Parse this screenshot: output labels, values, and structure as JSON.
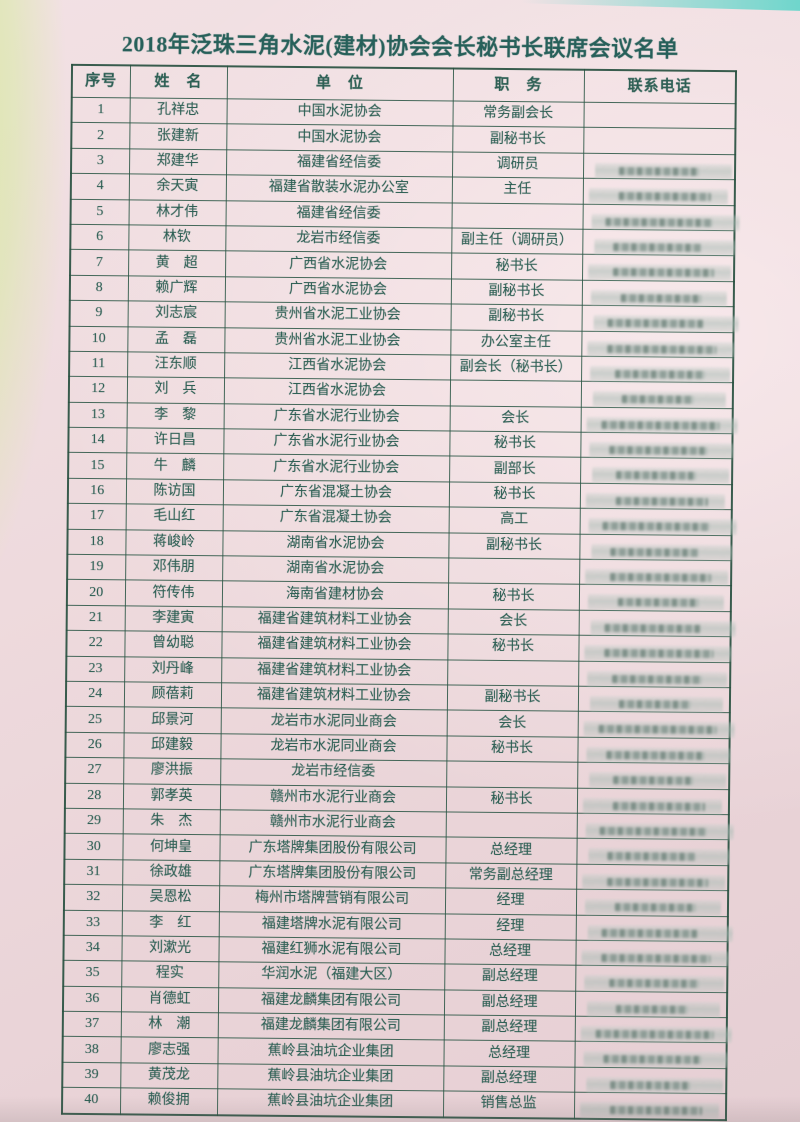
{
  "page": {
    "title": "2018年泛珠三角水泥(建材)协会会长秘书长联席会议名单"
  },
  "colors": {
    "ink_green": "#2d5f54",
    "paper_pink": "#eedadd",
    "background_teal": "#6fd6cc",
    "left_edge_green": "#d5e898",
    "redaction_gray": "#aebdb6"
  },
  "table": {
    "headers": [
      "序号",
      "姓　名",
      "单　位",
      "职　务",
      "联系电话"
    ],
    "rows": [
      {
        "no": "1",
        "name": "孔祥忠",
        "org": "中国水泥协会",
        "title": "常务副会长",
        "phone_redacted": false
      },
      {
        "no": "2",
        "name": "张建新",
        "org": "中国水泥协会",
        "title": "副秘书长",
        "phone_redacted": false
      },
      {
        "no": "3",
        "name": "郑建华",
        "org": "福建省经信委",
        "title": "调研员",
        "phone_redacted": true
      },
      {
        "no": "4",
        "name": "余天寅",
        "org": "福建省散装水泥办公室",
        "title": "主任",
        "phone_redacted": true
      },
      {
        "no": "5",
        "name": "林才伟",
        "org": "福建省经信委",
        "title": "",
        "phone_redacted": true
      },
      {
        "no": "6",
        "name": "林钦",
        "org": "龙岩市经信委",
        "title": "副主任（调研员）",
        "phone_redacted": true
      },
      {
        "no": "7",
        "name": "黄　超",
        "org": "广西省水泥协会",
        "title": "秘书长",
        "phone_redacted": true
      },
      {
        "no": "8",
        "name": "赖广辉",
        "org": "广西省水泥协会",
        "title": "副秘书长",
        "phone_redacted": true
      },
      {
        "no": "9",
        "name": "刘志宸",
        "org": "贵州省水泥工业协会",
        "title": "副秘书长",
        "phone_redacted": true
      },
      {
        "no": "10",
        "name": "孟　磊",
        "org": "贵州省水泥工业协会",
        "title": "办公室主任",
        "phone_redacted": true
      },
      {
        "no": "11",
        "name": "汪东顺",
        "org": "江西省水泥协会",
        "title": "副会长（秘书长）",
        "phone_redacted": true
      },
      {
        "no": "12",
        "name": "刘　兵",
        "org": "江西省水泥协会",
        "title": "",
        "phone_redacted": true
      },
      {
        "no": "13",
        "name": "李　黎",
        "org": "广东省水泥行业协会",
        "title": "会长",
        "phone_redacted": true
      },
      {
        "no": "14",
        "name": "许日昌",
        "org": "广东省水泥行业协会",
        "title": "秘书长",
        "phone_redacted": true
      },
      {
        "no": "15",
        "name": "牛　麟",
        "org": "广东省水泥行业协会",
        "title": "副部长",
        "phone_redacted": true
      },
      {
        "no": "16",
        "name": "陈访国",
        "org": "广东省混凝土协会",
        "title": "秘书长",
        "phone_redacted": true
      },
      {
        "no": "17",
        "name": "毛山红",
        "org": "广东省混凝土协会",
        "title": "高工",
        "phone_redacted": true
      },
      {
        "no": "18",
        "name": "蒋峻岭",
        "org": "湖南省水泥协会",
        "title": "副秘书长",
        "phone_redacted": true
      },
      {
        "no": "19",
        "name": "邓伟朋",
        "org": "湖南省水泥协会",
        "title": "",
        "phone_redacted": true
      },
      {
        "no": "20",
        "name": "符传伟",
        "org": "海南省建材协会",
        "title": "秘书长",
        "phone_redacted": true
      },
      {
        "no": "21",
        "name": "李建寅",
        "org": "福建省建筑材料工业协会",
        "title": "会长",
        "phone_redacted": true
      },
      {
        "no": "22",
        "name": "曾幼聪",
        "org": "福建省建筑材料工业协会",
        "title": "秘书长",
        "phone_redacted": true
      },
      {
        "no": "23",
        "name": "刘丹峰",
        "org": "福建省建筑材料工业协会",
        "title": "",
        "phone_redacted": true
      },
      {
        "no": "24",
        "name": "顾蓓莉",
        "org": "福建省建筑材料工业协会",
        "title": "副秘书长",
        "phone_redacted": true
      },
      {
        "no": "25",
        "name": "邱景河",
        "org": "龙岩市水泥同业商会",
        "title": "会长",
        "phone_redacted": true
      },
      {
        "no": "26",
        "name": "邱建毅",
        "org": "龙岩市水泥同业商会",
        "title": "秘书长",
        "phone_redacted": true
      },
      {
        "no": "27",
        "name": "廖洪振",
        "org": "龙岩市经信委",
        "title": "",
        "phone_redacted": true
      },
      {
        "no": "28",
        "name": "郭孝英",
        "org": "赣州市水泥行业商会",
        "title": "秘书长",
        "phone_redacted": true
      },
      {
        "no": "29",
        "name": "朱　杰",
        "org": "赣州市水泥行业商会",
        "title": "",
        "phone_redacted": true
      },
      {
        "no": "30",
        "name": "何坤皇",
        "org": "广东塔牌集团股份有限公司",
        "title": "总经理",
        "phone_redacted": true
      },
      {
        "no": "31",
        "name": "徐政雄",
        "org": "广东塔牌集团股份有限公司",
        "title": "常务副总经理",
        "phone_redacted": true
      },
      {
        "no": "32",
        "name": "吴恩松",
        "org": "梅州市塔牌营销有限公司",
        "title": "经理",
        "phone_redacted": true
      },
      {
        "no": "33",
        "name": "李　红",
        "org": "福建塔牌水泥有限公司",
        "title": "经理",
        "phone_redacted": true
      },
      {
        "no": "34",
        "name": "刘漱光",
        "org": "福建红狮水泥有限公司",
        "title": "总经理",
        "phone_redacted": true
      },
      {
        "no": "35",
        "name": "程实",
        "org": "华润水泥（福建大区）",
        "title": "副总经理",
        "phone_redacted": true
      },
      {
        "no": "36",
        "name": "肖德虹",
        "org": "福建龙麟集团有限公司",
        "title": "副总经理",
        "phone_redacted": true
      },
      {
        "no": "37",
        "name": "林　潮",
        "org": "福建龙麟集团有限公司",
        "title": "副总经理",
        "phone_redacted": true
      },
      {
        "no": "38",
        "name": "廖志强",
        "org": "蕉岭县油坑企业集团",
        "title": "总经理",
        "phone_redacted": true
      },
      {
        "no": "39",
        "name": "黄茂龙",
        "org": "蕉岭县油坑企业集团",
        "title": "副总经理",
        "phone_redacted": true
      },
      {
        "no": "40",
        "name": "赖俊拥",
        "org": "蕉岭县油坑企业集团",
        "title": "销售总监",
        "phone_redacted": true
      }
    ]
  }
}
